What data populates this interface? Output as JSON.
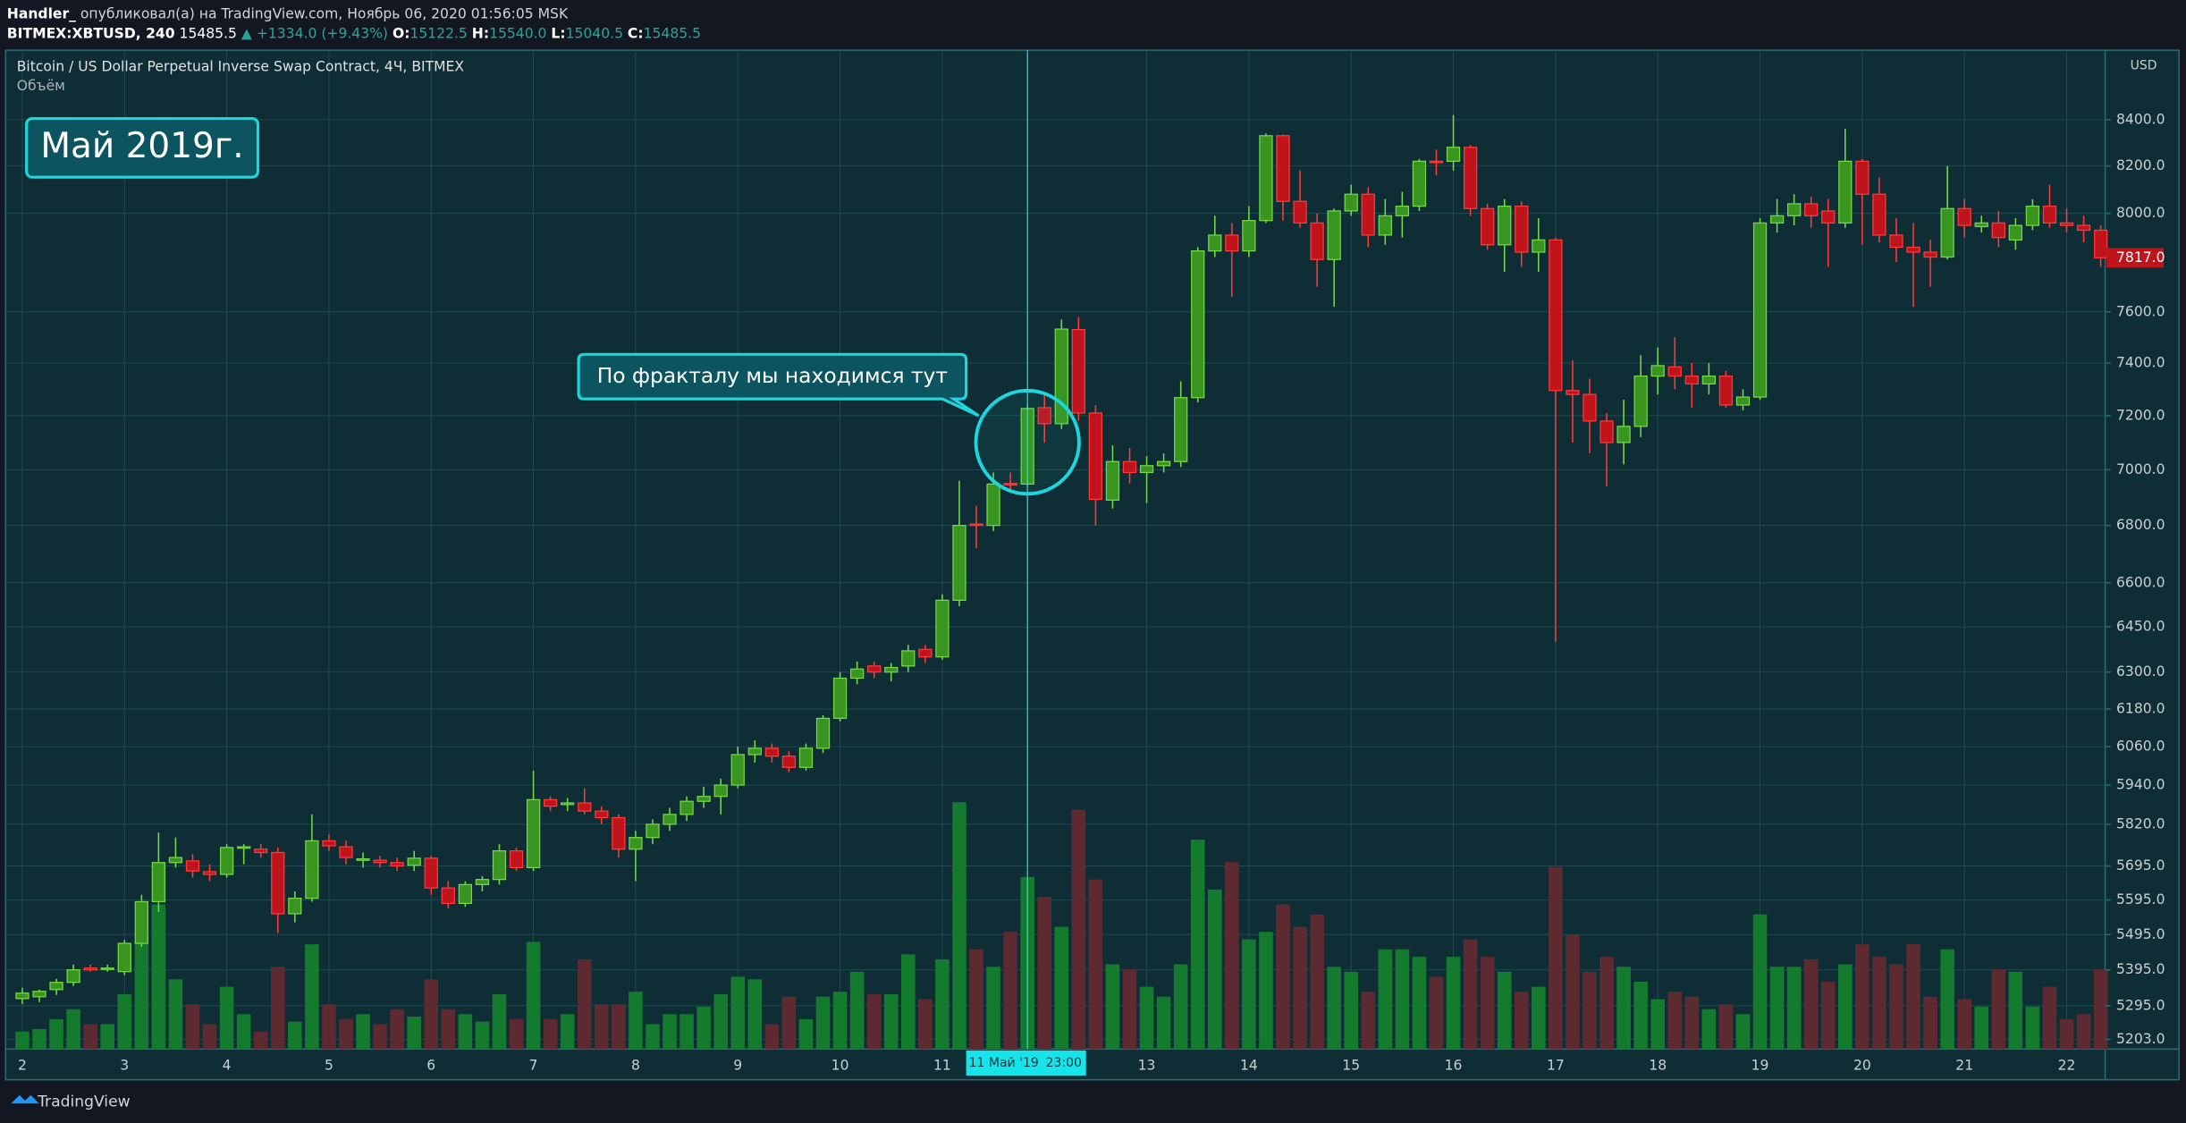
{
  "header": {
    "author": "Handler_",
    "published": "опубликовал(а) на TradingView.com, Ноябрь 06, 2020 01:56:05 MSK",
    "ticker": "BITMEX:XBTUSD, 240",
    "last": "15485.5",
    "change": "▲ +1334.0 (+9.43%)",
    "o_label": "O:",
    "o": "15122.5",
    "h_label": "H:",
    "h": "15540.0",
    "l_label": "L:",
    "l": "15040.5",
    "c_label": "C:",
    "c": "15485.5"
  },
  "footer": "TradingView",
  "chart_data": {
    "type": "candlestick",
    "title": "Bitcoin / US Dollar Perpetual Inverse Swap Contract, 4Ч, BITMEX",
    "volume_label": "Объём",
    "currency": "USD",
    "annotations": [
      "Май 2019г.",
      "По фракталу мы находимся тут"
    ],
    "crosshair_label": [
      "11 Май '19",
      "23:00"
    ],
    "last_price_label": "7817.0",
    "log_scale": true,
    "grid": true,
    "up_color": "#3a9420",
    "down_color": "#c0141c",
    "up_border": "#74d84a",
    "down_border": "#ff3a3a",
    "volume_up_color": "#137a2e",
    "volume_down_color": "#5e2a32",
    "ylim": [
      5177,
      8703
    ],
    "yticks": [
      {
        "value": 5203,
        "label": "5203.0"
      },
      {
        "value": 5295,
        "label": "5295.0"
      },
      {
        "value": 5395,
        "label": "5395.0"
      },
      {
        "value": 5495,
        "label": "5495.0"
      },
      {
        "value": 5595,
        "label": "5595.0"
      },
      {
        "value": 5695,
        "label": "5695.0"
      },
      {
        "value": 5820,
        "label": "5820.0"
      },
      {
        "value": 5940,
        "label": "5940.0"
      },
      {
        "value": 6060,
        "label": "6060.0"
      },
      {
        "value": 6180,
        "label": "6180.0"
      },
      {
        "value": 6300,
        "label": "6300.0"
      },
      {
        "value": 6450,
        "label": "6450.0"
      },
      {
        "value": 6600,
        "label": "6600.0"
      },
      {
        "value": 6800,
        "label": "6800.0"
      },
      {
        "value": 7000,
        "label": "7000.0"
      },
      {
        "value": 7200,
        "label": "7200.0"
      },
      {
        "value": 7400,
        "label": "7400.0"
      },
      {
        "value": 7600,
        "label": "7600.0"
      },
      {
        "value": 8000,
        "label": "8000.0"
      },
      {
        "value": 8200,
        "label": "8200.0"
      },
      {
        "value": 8400,
        "label": "8400.0"
      }
    ],
    "volume_ylim": [
      0,
      400
    ],
    "categories": [
      "2",
      null,
      null,
      null,
      null,
      null,
      "3",
      null,
      null,
      null,
      null,
      null,
      "4",
      null,
      null,
      null,
      null,
      null,
      "5",
      null,
      null,
      null,
      null,
      null,
      "6",
      null,
      null,
      null,
      null,
      null,
      "7",
      null,
      null,
      null,
      null,
      null,
      "8",
      null,
      null,
      null,
      null,
      null,
      "9",
      null,
      null,
      null,
      null,
      null,
      "10",
      null,
      null,
      null,
      null,
      null,
      "11",
      null,
      null,
      null,
      null,
      null,
      null,
      null,
      null,
      null,
      null,
      null,
      "13",
      null,
      null,
      null,
      null,
      null,
      "14",
      null,
      null,
      null,
      null,
      null,
      "15",
      null,
      null,
      null,
      null,
      null,
      "16",
      null,
      null,
      null,
      null,
      null,
      "17",
      null,
      null,
      null,
      null,
      null,
      "18",
      null,
      null,
      null,
      null,
      null,
      "19",
      null,
      null,
      null,
      null,
      null,
      "20",
      null,
      null,
      null,
      null,
      null,
      "21",
      null,
      null,
      null,
      null,
      null,
      "22",
      null,
      null
    ],
    "open": [
      5315,
      5320,
      5340,
      5360,
      5400,
      5398,
      5390,
      5470,
      5590,
      5705,
      5710,
      5678,
      5670,
      5748,
      5745,
      5735,
      5555,
      5600,
      5770,
      5752,
      5715,
      5712,
      5705,
      5697,
      5718,
      5630,
      5585,
      5640,
      5655,
      5740,
      5690,
      5895,
      5880,
      5885,
      5860,
      5840,
      5745,
      5780,
      5820,
      5850,
      5890,
      5905,
      5940,
      6035,
      6055,
      6030,
      5995,
      6055,
      6150,
      6280,
      6320,
      6300,
      6320,
      6375,
      6350,
      6540,
      6805,
      6800,
      6950,
      6948,
      7230,
      7170,
      7530,
      7210,
      6890,
      7030,
      6990,
      7015,
      7030,
      7268,
      7845,
      7910,
      7845,
      7970,
      8330,
      8050,
      7960,
      7810,
      8010,
      8080,
      7910,
      7990,
      8030,
      8220,
      8220,
      8280,
      8020,
      7870,
      8030,
      7840,
      7890,
      7295,
      7280,
      7180,
      7100,
      7160,
      7350,
      7385,
      7350,
      7320,
      7350,
      7240,
      7270,
      7960,
      7990,
      8040,
      8010,
      7960,
      8220,
      8080,
      7910,
      7860,
      7840,
      7820,
      8020,
      7945,
      7960,
      7890,
      7950,
      8030,
      7960,
      7950,
      7930
    ],
    "high": [
      5345,
      5340,
      5370,
      5410,
      5410,
      5410,
      5480,
      5610,
      5795,
      5780,
      5730,
      5700,
      5760,
      5760,
      5760,
      5750,
      5620,
      5850,
      5790,
      5770,
      5735,
      5725,
      5720,
      5740,
      5725,
      5650,
      5650,
      5665,
      5760,
      5750,
      5985,
      5905,
      5900,
      5930,
      5875,
      5850,
      5800,
      5835,
      5870,
      5905,
      5935,
      5960,
      6060,
      6080,
      6070,
      6045,
      6070,
      6160,
      6300,
      6335,
      6335,
      6330,
      6390,
      6390,
      6560,
      6960,
      6870,
      6990,
      6990,
      7240,
      7280,
      7570,
      7580,
      7240,
      7090,
      7080,
      7050,
      7060,
      7330,
      7860,
      7990,
      7960,
      8030,
      8340,
      8335,
      8180,
      8000,
      8020,
      8120,
      8110,
      8060,
      8090,
      8230,
      8270,
      8420,
      8290,
      8040,
      8060,
      8050,
      7980,
      7900,
      7410,
      7340,
      7210,
      7260,
      7430,
      7460,
      7500,
      7400,
      7400,
      7370,
      7300,
      7980,
      8060,
      8080,
      8070,
      8060,
      8360,
      8230,
      8150,
      7980,
      7960,
      7890,
      8200,
      8060,
      7990,
      8010,
      7980,
      8060,
      8120,
      8020,
      7990,
      7950
    ],
    "low": [
      5300,
      5305,
      5325,
      5350,
      5390,
      5390,
      5380,
      5460,
      5560,
      5690,
      5660,
      5650,
      5660,
      5700,
      5720,
      5500,
      5530,
      5590,
      5740,
      5700,
      5690,
      5690,
      5680,
      5680,
      5610,
      5570,
      5575,
      5620,
      5640,
      5680,
      5680,
      5860,
      5860,
      5850,
      5820,
      5720,
      5650,
      5760,
      5800,
      5830,
      5870,
      5850,
      5930,
      6010,
      6010,
      5980,
      5985,
      6040,
      6140,
      6260,
      6280,
      6270,
      6300,
      6330,
      6340,
      6520,
      6720,
      6780,
      6920,
      6940,
      7100,
      7150,
      7180,
      6800,
      6860,
      6950,
      6880,
      6990,
      7010,
      7250,
      7820,
      7660,
      7820,
      7960,
      7970,
      7940,
      7700,
      7620,
      7990,
      7860,
      7870,
      7900,
      8010,
      8160,
      8180,
      7990,
      7850,
      7760,
      7780,
      7760,
      6400,
      7100,
      7060,
      6940,
      7020,
      7120,
      7280,
      7300,
      7230,
      7280,
      7230,
      7220,
      7260,
      7920,
      7950,
      7940,
      7780,
      7940,
      7870,
      7880,
      7800,
      7620,
      7700,
      7810,
      7900,
      7920,
      7860,
      7850,
      7930,
      7940,
      7920,
      7880,
      7780
    ],
    "close": [
      5330,
      5335,
      5360,
      5395,
      5395,
      5400,
      5470,
      5590,
      5705,
      5720,
      5680,
      5670,
      5750,
      5752,
      5735,
      5555,
      5600,
      5770,
      5755,
      5720,
      5716,
      5705,
      5695,
      5718,
      5630,
      5585,
      5640,
      5655,
      5740,
      5690,
      5895,
      5875,
      5885,
      5860,
      5840,
      5745,
      5780,
      5820,
      5850,
      5890,
      5905,
      5940,
      6035,
      6055,
      6030,
      5995,
      6055,
      6150,
      6280,
      6310,
      6300,
      6315,
      6370,
      6350,
      6540,
      6800,
      6800,
      6948,
      6948,
      7227,
      7170,
      7532,
      7210,
      6893,
      7030,
      6990,
      7015,
      7030,
      7268,
      7845,
      7910,
      7845,
      7970,
      8330,
      8050,
      7960,
      7810,
      8010,
      8080,
      7910,
      7990,
      8030,
      8220,
      8215,
      8280,
      8020,
      7870,
      8030,
      7840,
      7890,
      7295,
      7280,
      7180,
      7100,
      7160,
      7350,
      7390,
      7350,
      7320,
      7350,
      7240,
      7270,
      7960,
      7990,
      8040,
      7990,
      7960,
      8220,
      8080,
      7910,
      7860,
      7840,
      7820,
      8020,
      7950,
      7960,
      7900,
      7950,
      8030,
      7960,
      7950,
      7930,
      7817
    ],
    "volume": [
      7,
      8,
      12,
      16,
      10,
      10,
      22,
      44,
      58,
      28,
      18,
      10,
      25,
      14,
      7,
      33,
      11,
      42,
      18,
      12,
      14,
      10,
      16,
      13,
      28,
      16,
      14,
      11,
      22,
      12,
      43,
      12,
      14,
      36,
      18,
      18,
      23,
      10,
      14,
      14,
      17,
      22,
      29,
      28,
      10,
      21,
      12,
      21,
      23,
      31,
      22,
      22,
      38,
      20,
      36,
      99,
      40,
      33,
      47,
      69,
      61,
      49,
      96,
      68,
      34,
      32,
      25,
      21,
      34,
      84,
      64,
      75,
      44,
      47,
      58,
      49,
      54,
      33,
      31,
      23,
      40,
      40,
      37,
      29,
      37,
      44,
      37,
      31,
      23,
      25,
      73,
      46,
      31,
      37,
      33,
      27,
      20,
      23,
      21,
      16,
      18,
      14,
      54,
      33,
      33,
      36,
      27,
      34,
      42,
      37,
      34,
      42,
      21,
      40,
      20,
      17,
      32,
      31,
      17,
      25,
      12,
      14,
      32
    ]
  }
}
